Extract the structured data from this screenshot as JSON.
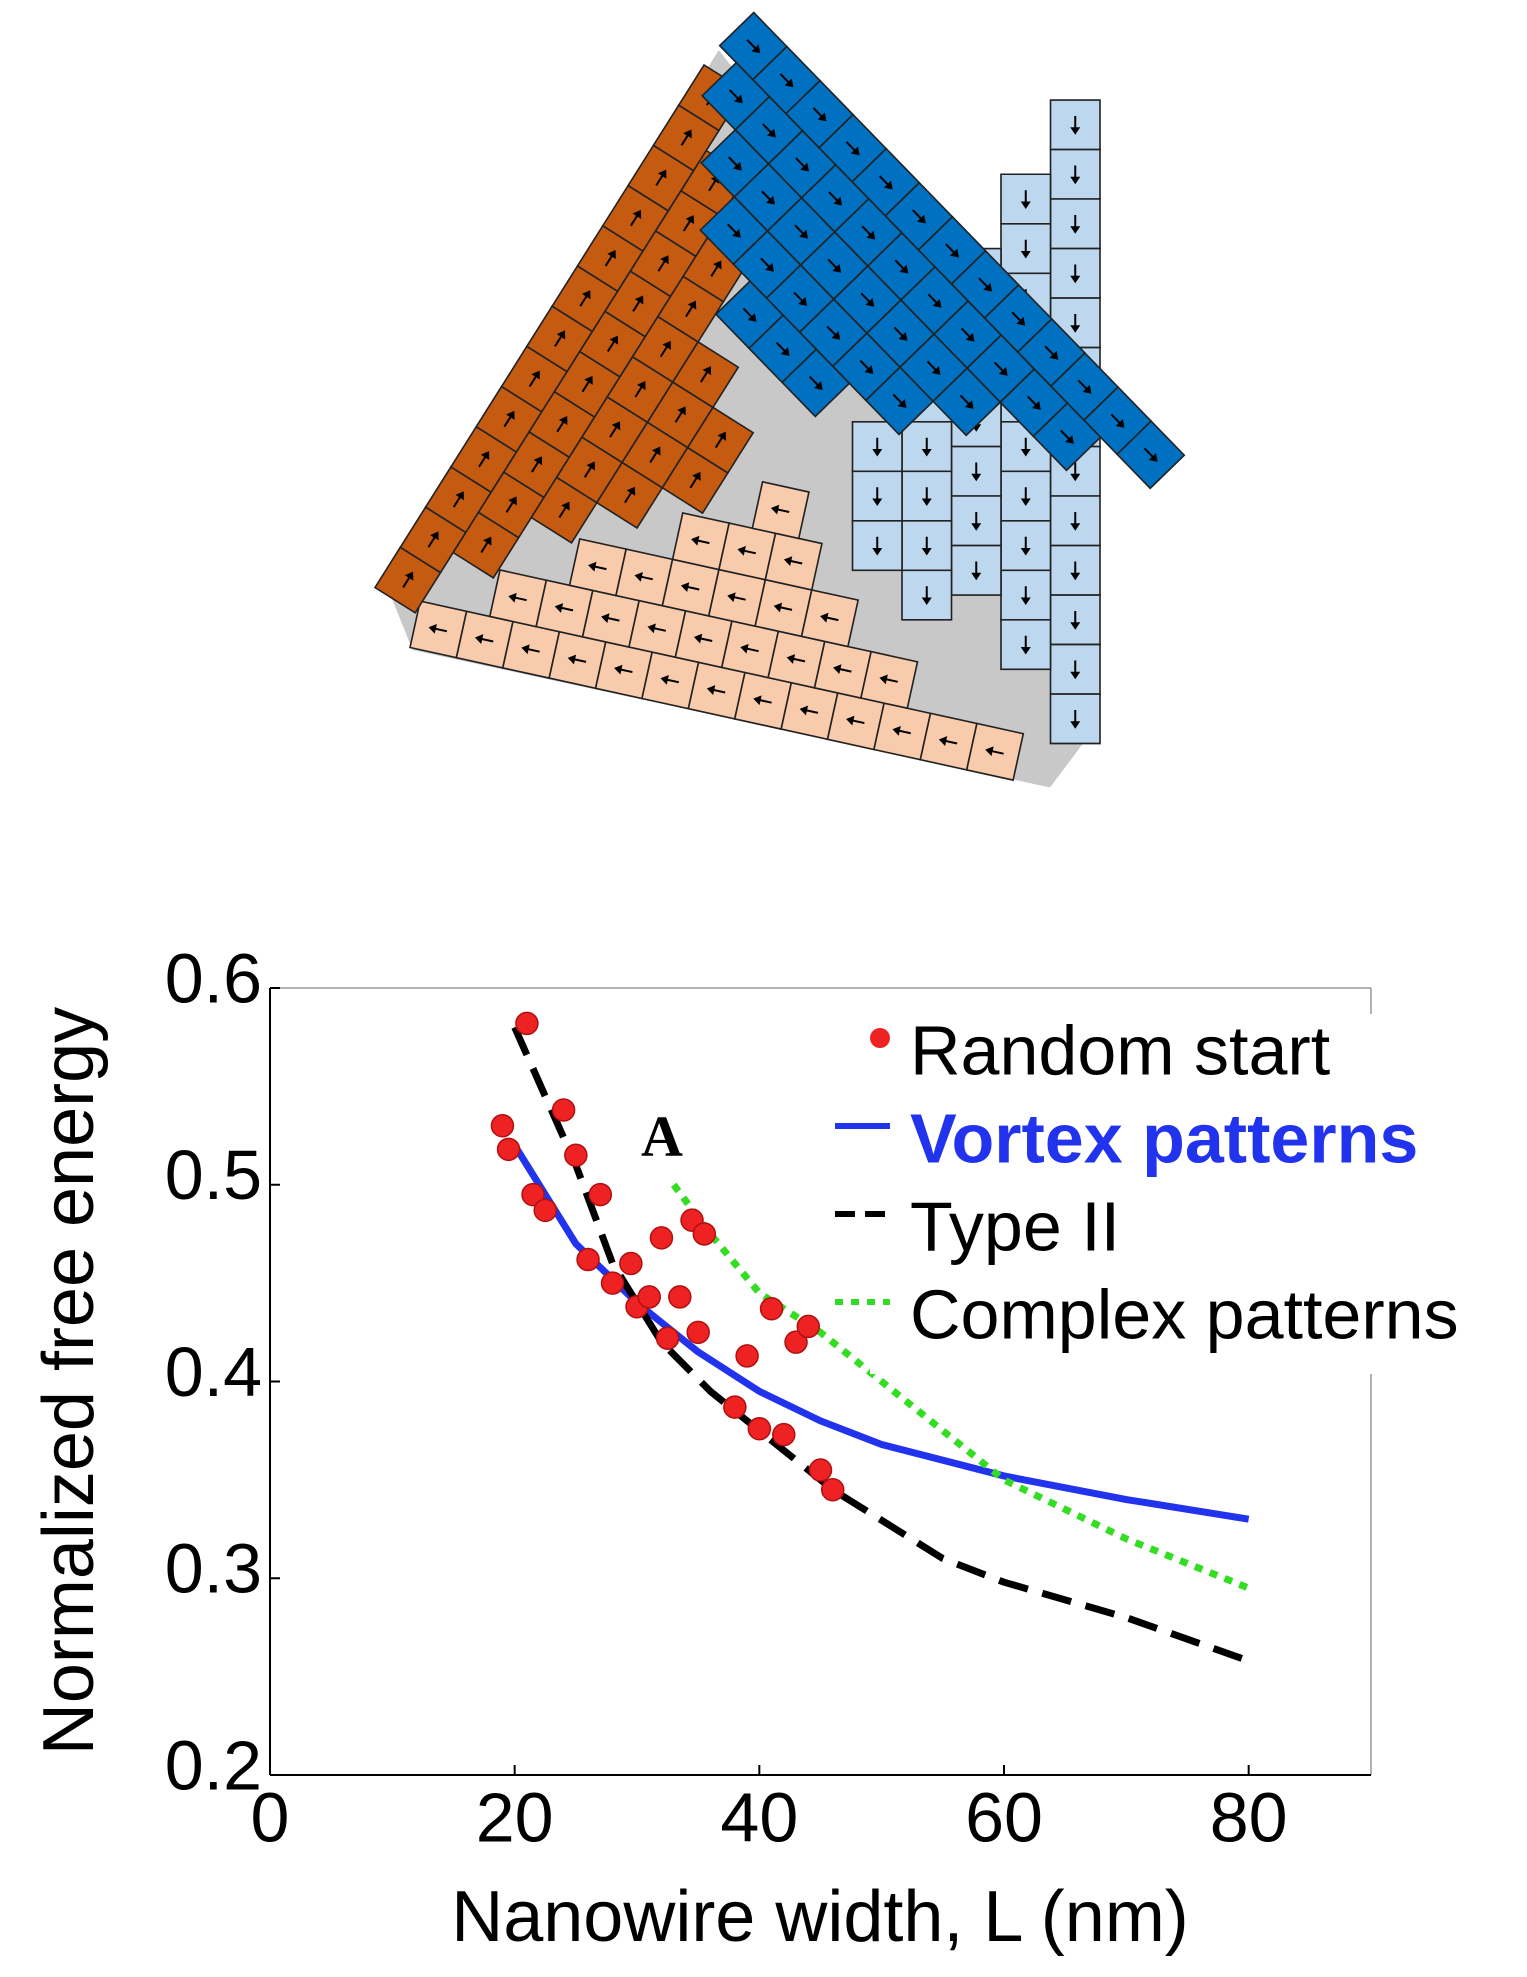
{
  "chart_data": {
    "type": "line",
    "y_label": "Normalized free energy",
    "x_label": "Nanowire width, L (nm)",
    "annotation": "A",
    "xlim": [
      0,
      90
    ],
    "ylim": [
      0.2,
      0.6
    ],
    "xticks": [
      0,
      20,
      40,
      60,
      80
    ],
    "yticks": [
      0.2,
      0.3,
      0.4,
      0.5,
      0.6
    ],
    "legend": "upper right",
    "series": [
      {
        "name": "Random start",
        "color": "#ee2222",
        "style": "markers",
        "x": [
          19,
          19.5,
          21,
          21.5,
          22.5,
          24,
          25,
          26,
          27,
          28,
          29.5,
          30,
          31,
          32,
          32.5,
          33.5,
          34.5,
          35.5,
          35,
          38,
          39,
          40,
          41,
          42,
          43,
          44,
          45,
          46
        ],
        "values": [
          0.53,
          0.518,
          0.582,
          0.495,
          0.487,
          0.538,
          0.515,
          0.462,
          0.495,
          0.45,
          0.46,
          0.438,
          0.443,
          0.473,
          0.422,
          0.443,
          0.482,
          0.475,
          0.425,
          0.387,
          0.413,
          0.376,
          0.437,
          0.373,
          0.42,
          0.428,
          0.355,
          0.345
        ]
      },
      {
        "name": "Vortex patterns",
        "color": "#2233ee",
        "style": "solid",
        "legend_bold": true,
        "x": [
          20,
          25,
          30,
          35,
          40,
          45,
          50,
          60,
          70,
          80
        ],
        "values": [
          0.52,
          0.47,
          0.44,
          0.415,
          0.395,
          0.38,
          0.368,
          0.352,
          0.34,
          0.33
        ]
      },
      {
        "name": "Type II",
        "color": "#000000",
        "style": "dashed",
        "x": [
          20,
          25,
          28,
          32,
          36,
          40,
          46,
          55,
          60,
          70,
          80
        ],
        "values": [
          0.58,
          0.51,
          0.46,
          0.42,
          0.395,
          0.375,
          0.345,
          0.31,
          0.298,
          0.28,
          0.258
        ]
      },
      {
        "name": "Complex patterns",
        "color": "#33dd22",
        "style": "dotted",
        "x": [
          33,
          36,
          40,
          45,
          50,
          55,
          60,
          70,
          80
        ],
        "values": [
          0.5,
          0.475,
          0.445,
          0.425,
          0.4,
          0.375,
          0.35,
          0.32,
          0.295
        ]
      }
    ]
  }
}
